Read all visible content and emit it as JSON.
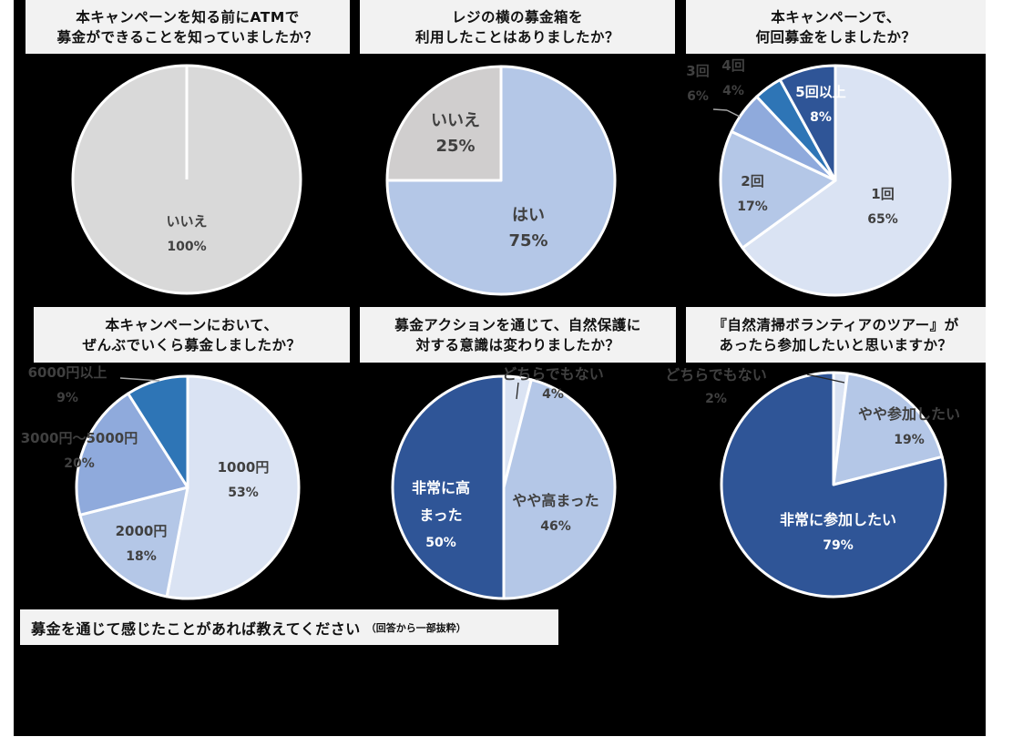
{
  "colors": {
    "gray": "#d9d9d9",
    "gray_mid": "#d0cece",
    "pale_blue": "#dae3f3",
    "light_blue": "#b4c7e7",
    "mid_blue": "#8faadc",
    "blue": "#2e75b6",
    "navy": "#2f5597",
    "label_dark": "#404040",
    "title_bg": "#f2f2f2"
  },
  "comment_section": {
    "title": "募金を通じて感じたことがあれば教えてください",
    "note": "（回答から一部抜粋）"
  },
  "chart_data": [
    {
      "type": "pie",
      "title_lines": [
        "本キャンペーンを知る前にATMで",
        "募金ができることを知っていましたか？"
      ],
      "categories": [
        "いいえ"
      ],
      "values": [
        100
      ],
      "labels": [
        "100%"
      ]
    },
    {
      "type": "pie",
      "title_lines": [
        "レジの横の募金箱を",
        "利用したことはありましたか？"
      ],
      "categories": [
        "はい",
        "いいえ"
      ],
      "values": [
        75,
        25
      ],
      "labels": [
        "75%",
        "25%"
      ]
    },
    {
      "type": "pie",
      "title_lines": [
        "本キャンペーンで、",
        "何回募金をしましたか？"
      ],
      "categories": [
        "1回",
        "2回",
        "3回",
        "4回",
        "5回以上"
      ],
      "values": [
        65,
        17,
        6,
        4,
        8
      ],
      "labels": [
        "65%",
        "17%",
        "6%",
        "4%",
        "8%"
      ]
    },
    {
      "type": "pie",
      "title_lines": [
        "本キャンペーンにおいて、",
        "ぜんぶでいくら募金しましたか？"
      ],
      "categories": [
        "1000円",
        "2000円",
        "3000円～5000円",
        "6000円以上"
      ],
      "values": [
        53,
        18,
        20,
        9
      ],
      "labels": [
        "53%",
        "18%",
        "20%",
        "9%"
      ]
    },
    {
      "type": "pie",
      "title_lines": [
        "募金アクションを通じて、自然保護に",
        "対する意識は変わりましたか？"
      ],
      "categories": [
        "どちらでもない",
        "やや高まった",
        "非常に高まった"
      ],
      "display_names": [
        "どちらでもない",
        "やや高まった",
        "非常に高\nまった"
      ],
      "values": [
        4,
        46,
        50
      ],
      "labels": [
        "4%",
        "46%",
        "50%"
      ]
    },
    {
      "type": "pie",
      "title_lines": [
        "『自然清掃ボランティアのツアー』が",
        "あったら参加したいと思いますか？"
      ],
      "categories": [
        "どちらでもない",
        "やや参加したい",
        "非常に参加したい"
      ],
      "values": [
        2,
        19,
        79
      ],
      "labels": [
        "2%",
        "19%",
        "79%"
      ]
    }
  ]
}
